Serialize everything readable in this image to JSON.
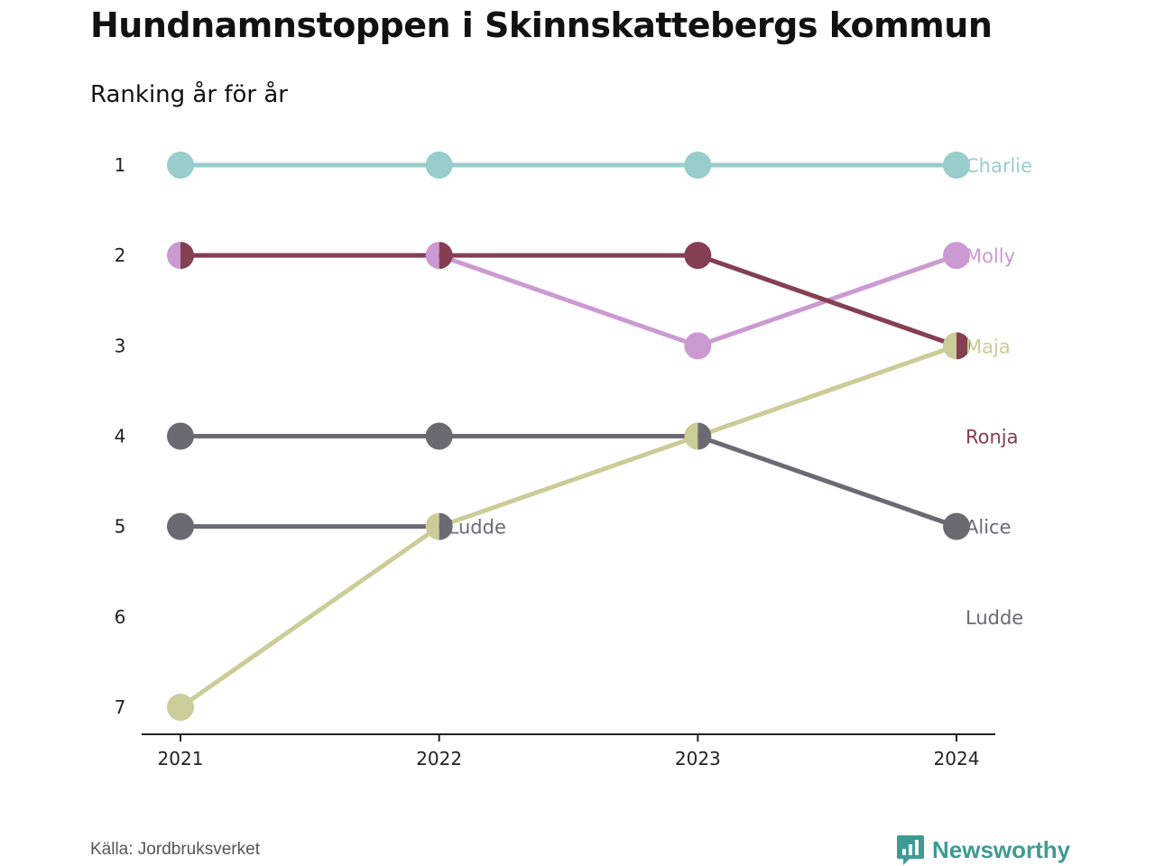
{
  "title": "Hundnamnstoppen i Skinnskattebergs kommun",
  "subtitle": "Ranking år för år",
  "source": "Källa: Jordbruksverket",
  "brand": "Newsworthy",
  "colors": {
    "Charlie": "#98cdcb",
    "Molly": "#cc9ad2",
    "Maja": "#cbcc98",
    "Ronja": "#843f52",
    "Alice": "#6b6a73",
    "Ludde": "#6b6a73",
    "axis": "#222222",
    "brand": "#3d9b93"
  },
  "chart_data": {
    "type": "line",
    "title": "Hundnamnstoppen i Skinnskattebergs kommun",
    "subtitle": "Ranking år för år",
    "x": [
      2021,
      2022,
      2023,
      2024
    ],
    "y_ticks": [
      1,
      2,
      3,
      4,
      5,
      6,
      7
    ],
    "ylim": [
      1,
      7
    ],
    "y_reversed": true,
    "grid": false,
    "series": [
      {
        "name": "Charlie",
        "values": [
          1,
          1,
          1,
          1
        ]
      },
      {
        "name": "Molly",
        "values": [
          2,
          2,
          3,
          2
        ]
      },
      {
        "name": "Ronja",
        "values": [
          2,
          2,
          2,
          3
        ]
      },
      {
        "name": "Maja",
        "values": [
          7,
          5,
          4,
          3
        ]
      },
      {
        "name": "Alice",
        "values": [
          4,
          4,
          4,
          5
        ]
      },
      {
        "name": "Ludde",
        "values": [
          5,
          5,
          null,
          null
        ]
      }
    ],
    "end_labels": [
      {
        "name": "Charlie",
        "rank": 1
      },
      {
        "name": "Molly",
        "rank": 2
      },
      {
        "name": "Maja",
        "rank": 3
      },
      {
        "name": "Ronja",
        "rank": 4
      },
      {
        "name": "Alice",
        "rank": 5
      },
      {
        "name": "Ludde",
        "rank": 6
      }
    ],
    "inline_labels": [
      {
        "name": "Ludde",
        "x": 2022,
        "rank": 5
      }
    ]
  }
}
